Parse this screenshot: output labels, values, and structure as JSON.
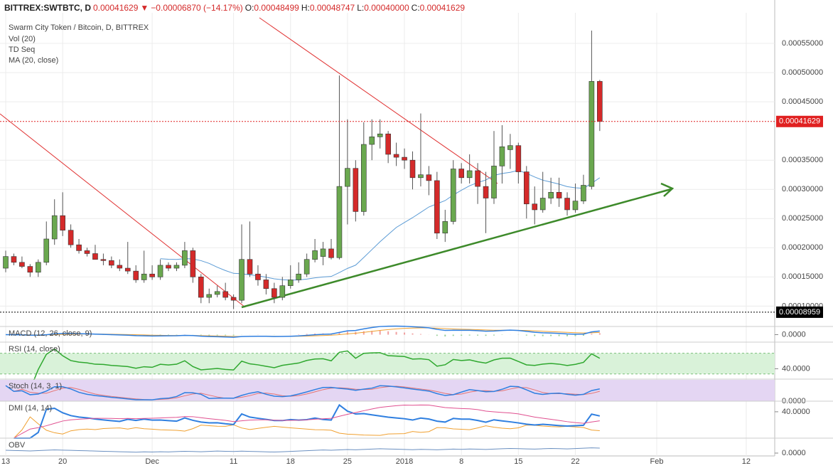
{
  "header": {
    "parts": [
      "BITTREX:SWTBTC, D",
      "0.00041629",
      "▼",
      "−0.00006870 (−14.17%)",
      "O:",
      "0.00048499",
      "H:",
      "0.00048747",
      "L:",
      "0.00040000",
      "C:",
      "0.00041629"
    ]
  },
  "chart_data": {
    "type": "candlestick",
    "title": "Swarm City Token / Bitcoin, D, BITTREX",
    "indicators_legend": [
      "Vol (20)",
      "TD Seq",
      "MA (20, close)"
    ],
    "x": [
      0,
      1,
      2,
      3,
      4,
      5,
      6,
      7,
      8,
      9,
      10,
      11,
      12,
      13,
      14,
      15,
      16,
      17,
      18,
      19,
      20,
      21,
      22,
      23,
      24,
      25,
      26,
      27,
      28,
      29,
      30,
      31,
      32,
      33,
      34,
      35,
      36,
      37,
      38,
      39,
      40,
      41,
      42,
      43,
      44,
      45,
      46,
      47,
      48,
      49,
      50,
      51,
      52,
      53,
      54,
      55,
      56,
      57,
      58,
      59,
      60,
      61,
      62,
      63,
      64,
      65,
      66,
      67,
      68,
      69,
      70,
      71,
      72,
      73
    ],
    "xlim": [
      -0.7,
      94.5
    ],
    "xticks": [
      {
        "value": 0,
        "label": "13"
      },
      {
        "value": 7,
        "label": "20"
      },
      {
        "value": 18,
        "label": "Dec"
      },
      {
        "value": 28,
        "label": "11"
      },
      {
        "value": 35,
        "label": "18"
      },
      {
        "value": 42,
        "label": "25"
      },
      {
        "value": 49,
        "label": "2018"
      },
      {
        "value": 56,
        "label": "8"
      },
      {
        "value": 63,
        "label": "15"
      },
      {
        "value": 70,
        "label": "22"
      },
      {
        "value": 80,
        "label": "Feb"
      },
      {
        "value": 91,
        "label": "12"
      }
    ],
    "ylim": [
      7e-05,
      0.0006
    ],
    "yticks": [
      {
        "value": 0.0001,
        "label": "0.00010000"
      },
      {
        "value": 0.00015,
        "label": "0.00015000"
      },
      {
        "value": 0.0002,
        "label": "0.00020000"
      },
      {
        "value": 0.00025,
        "label": "0.00025000"
      },
      {
        "value": 0.0003,
        "label": "0.00030000"
      },
      {
        "value": 0.00035,
        "label": "0.00035000"
      },
      {
        "value": 0.00045,
        "label": "0.00045000"
      },
      {
        "value": 0.0005,
        "label": "0.00050000"
      },
      {
        "value": 0.00055,
        "label": "0.00055000"
      }
    ],
    "open": [
      0.000165,
      0.000185,
      0.000175,
      0.000168,
      0.000158,
      0.000175,
      0.000215,
      0.000255,
      0.00023,
      0.000205,
      0.000195,
      0.00019,
      0.00018,
      0.000178,
      0.00017,
      0.000165,
      0.00016,
      0.000145,
      0.000155,
      0.00015,
      0.00017,
      0.000165,
      0.00017,
      0.000195,
      0.00015,
      0.000115,
      0.00012,
      0.000125,
      0.000115,
      0.00011,
      0.00018,
      0.000155,
      0.000145,
      0.00013,
      0.000115,
      0.000135,
      0.000145,
      0.000155,
      0.00018,
      0.000185,
      0.000198,
      0.000183,
      0.000305,
      0.000336,
      0.000262,
      0.000377,
      0.00039,
      0.000395,
      0.00036,
      0.000355,
      0.00035,
      0.00032,
      0.000325,
      0.000315,
      0.000225,
      0.000245,
      0.000335,
      0.00032,
      0.000332,
      0.000305,
      0.000285,
      0.00034,
      0.000368,
      0.000375,
      0.00033,
      0.000275,
      0.000265,
      0.000285,
      0.000295,
      0.000285,
      0.000265,
      0.00028,
      0.000305,
      0.00048499
    ],
    "high": [
      0.000195,
      0.00019,
      0.000185,
      0.000172,
      0.00018,
      0.000245,
      0.000283,
      0.000295,
      0.00024,
      0.000215,
      0.0002,
      0.000205,
      0.00019,
      0.000185,
      0.00018,
      0.00021,
      0.00017,
      0.000195,
      0.00017,
      0.00018,
      0.000175,
      0.000175,
      0.00021,
      0.0002,
      0.000155,
      0.00013,
      0.000135,
      0.00014,
      0.00012,
      0.00024,
      0.000245,
      0.00017,
      0.000155,
      0.00014,
      0.00015,
      0.00017,
      0.000175,
      0.00019,
      0.000215,
      0.00021,
      0.000215,
      0.000495,
      0.00042,
      0.00035,
      0.000415,
      0.00042,
      0.00042,
      0.0004,
      0.00038,
      0.00037,
      0.000365,
      0.00043,
      0.00034,
      0.00033,
      0.000265,
      0.00035,
      0.000345,
      0.00036,
      0.000345,
      0.00033,
      0.0004,
      0.00041,
      0.000395,
      0.00038,
      0.00034,
      0.000305,
      0.00033,
      0.00032,
      0.00032,
      0.000295,
      0.00031,
      0.000325,
      0.000572,
      0.00048747
    ],
    "low": [
      0.000158,
      0.00017,
      0.000165,
      0.00015,
      0.00015,
      0.00017,
      0.000205,
      0.00022,
      0.0002,
      0.00019,
      0.000185,
      0.00018,
      0.00017,
      0.000165,
      0.00016,
      0.000155,
      0.00014,
      0.00014,
      0.000145,
      0.000145,
      0.00016,
      0.00016,
      0.000165,
      0.00014,
      0.000105,
      0.000105,
      0.000115,
      0.00011,
      9.5e-05,
      0.000105,
      0.00015,
      0.000135,
      0.00012,
      0.000105,
      0.00011,
      0.00013,
      0.00014,
      0.00015,
      0.000175,
      0.00017,
      0.00018,
      0.00018,
      0.00024,
      0.000245,
      0.000255,
      0.00035,
      0.00037,
      0.000345,
      0.00034,
      0.000335,
      0.0003,
      0.000305,
      0.00029,
      0.000215,
      0.00021,
      0.00024,
      0.00031,
      0.00031,
      0.000275,
      0.000225,
      0.000275,
      0.00031,
      0.000335,
      0.00031,
      0.00025,
      0.00024,
      0.00026,
      0.000275,
      0.00027,
      0.000255,
      0.00026,
      0.000275,
      0.0003,
      0.0004
    ],
    "close": [
      0.000185,
      0.000175,
      0.000168,
      0.000158,
      0.000175,
      0.000215,
      0.000255,
      0.00023,
      0.000205,
      0.000195,
      0.00019,
      0.00018,
      0.000178,
      0.00017,
      0.000165,
      0.00016,
      0.000145,
      0.000155,
      0.00015,
      0.00017,
      0.000165,
      0.00017,
      0.000195,
      0.00015,
      0.000115,
      0.00012,
      0.000125,
      0.000115,
      0.00011,
      0.00018,
      0.000155,
      0.000145,
      0.00013,
      0.000115,
      0.000135,
      0.000145,
      0.000155,
      0.00018,
      0.000195,
      0.000198,
      0.000183,
      0.000305,
      0.000336,
      0.000262,
      0.000377,
      0.00039,
      0.000395,
      0.00036,
      0.000355,
      0.00035,
      0.00032,
      0.000325,
      0.000315,
      0.000225,
      0.000245,
      0.000335,
      0.00032,
      0.000332,
      0.000305,
      0.000285,
      0.00034,
      0.000373,
      0.000375,
      0.00033,
      0.000275,
      0.000265,
      0.000285,
      0.000295,
      0.000285,
      0.000265,
      0.00028,
      0.000307,
      0.00048499,
      0.00041629
    ],
    "up_color": "#6aa84f",
    "down_color": "#d42a2a",
    "ma_color": "#5b9bd5",
    "price_lines": [
      {
        "value": 0.00041629,
        "label": "0.00041629",
        "color": "#e02020"
      },
      {
        "value": 8.959e-05,
        "label": "0.00008959",
        "color": "#000000"
      }
    ],
    "panels": [
      {
        "label": "MACD (12, 26, close, 9)",
        "kind": "macd",
        "ylim": [
          -5e-05,
          5e-05
        ],
        "yticks": [
          {
            "value": 0,
            "label": "0.0000"
          }
        ]
      },
      {
        "label": "RSI (14, close)",
        "kind": "rsi",
        "ylim": [
          20,
          90
        ],
        "yticks": [
          {
            "value": 40,
            "label": "40.0000"
          }
        ],
        "bands": [
          30,
          70
        ]
      },
      {
        "label": "Stoch (14, 3, 1)",
        "kind": "stoch",
        "ylim": [
          0,
          100
        ],
        "yticks": [
          {
            "value": 0,
            "label": "0.0000"
          }
        ]
      },
      {
        "label": "DMI (14, 14)",
        "kind": "dmi",
        "ylim": [
          0,
          55
        ],
        "yticks": [
          {
            "value": 40,
            "label": "40.0000"
          }
        ]
      },
      {
        "label": "OBV",
        "kind": "obv",
        "ylim": [
          -1,
          5
        ],
        "yticks": [
          {
            "value": 0,
            "label": "0.0000"
          }
        ]
      }
    ]
  }
}
